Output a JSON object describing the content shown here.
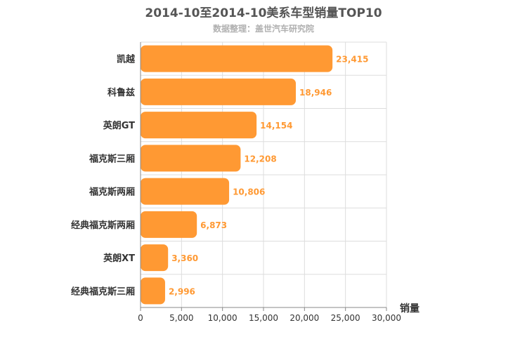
{
  "chart_data": {
    "type": "bar",
    "orientation": "horizontal",
    "title": "2014-10至2014-10美系车型销量TOP10",
    "subtitle": "数据整理：盖世汽车研究院",
    "xlabel": "销量",
    "ylabel": "",
    "xlim": [
      0,
      30000
    ],
    "x_ticks": [
      "0",
      "5,000",
      "10,000",
      "15,000",
      "20,000",
      "25,000",
      "30,000"
    ],
    "grid": true,
    "bar_color": "#ff9933",
    "label_color": "#ff9933",
    "categories": [
      "凯越",
      "科鲁兹",
      "英朗GT",
      "福克斯三厢",
      "福克斯两厢",
      "经典福克斯两厢",
      "英朗XT",
      "经典福克斯三厢"
    ],
    "values": [
      23415,
      18946,
      14154,
      12208,
      10806,
      6873,
      3360,
      2996
    ],
    "value_labels": [
      "23,415",
      "18,946",
      "14,154",
      "12,208",
      "10,806",
      "6,873",
      "3,360",
      "2,996"
    ]
  }
}
